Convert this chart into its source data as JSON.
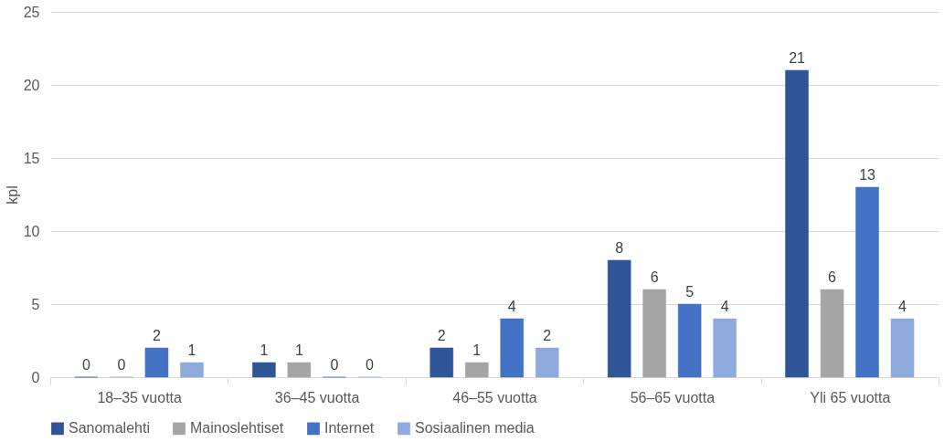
{
  "chart_data": {
    "type": "bar",
    "ylabel": "kpl",
    "categories": [
      "18–35 vuotta",
      "36–45 vuotta",
      "46–55 vuotta",
      "56–65 vuotta",
      "Yli 65 vuotta"
    ],
    "series": [
      {
        "name": "Sanomalehti",
        "color": "#2f5597",
        "values": [
          0,
          1,
          2,
          8,
          21
        ]
      },
      {
        "name": "Mainoslehtiset",
        "color": "#a5a5a5",
        "values": [
          0,
          1,
          1,
          6,
          6
        ]
      },
      {
        "name": "Internet",
        "color": "#4472c4",
        "values": [
          2,
          0,
          4,
          5,
          13
        ]
      },
      {
        "name": "Sosiaalinen media",
        "color": "#8faadc",
        "values": [
          1,
          0,
          2,
          4,
          4
        ]
      }
    ],
    "ylim": [
      0,
      25
    ],
    "yticks": [
      0,
      5,
      10,
      15,
      20,
      25
    ],
    "grid": "y",
    "legend": "bottom",
    "data_labels": true
  }
}
